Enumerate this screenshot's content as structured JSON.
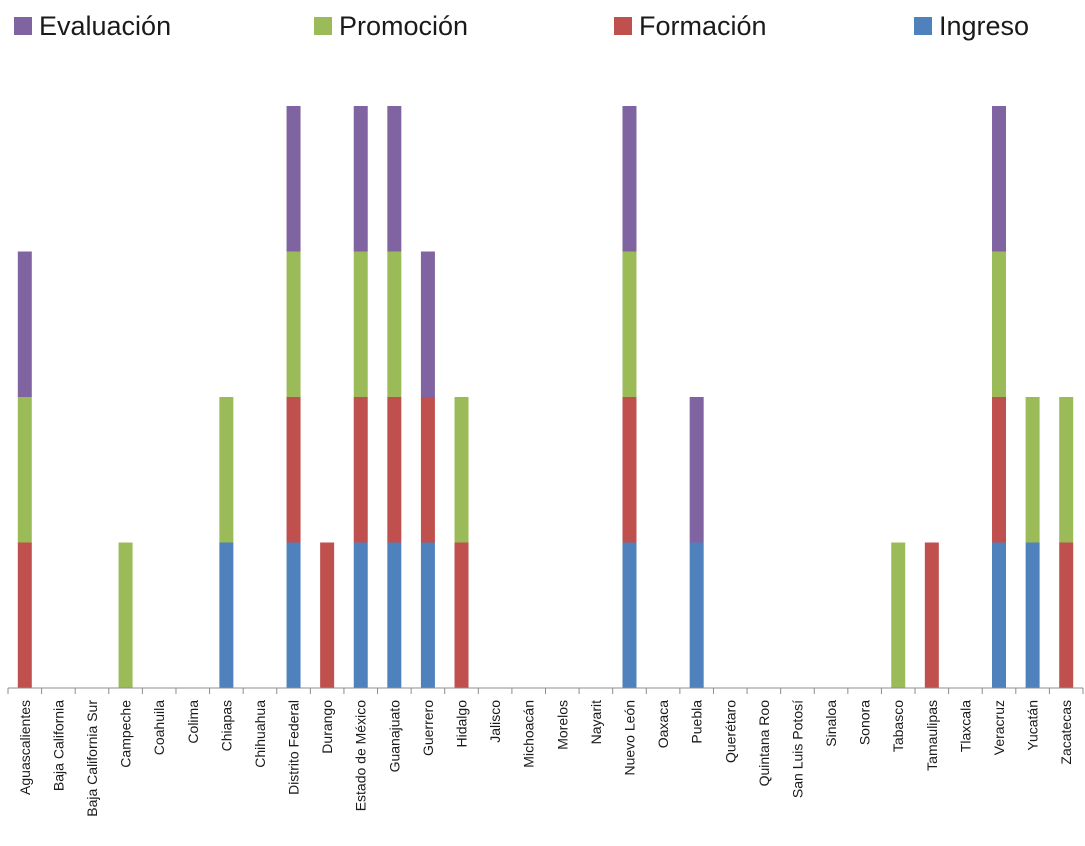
{
  "chart_data": {
    "type": "bar",
    "stacked": true,
    "legend_position": "top",
    "grid": false,
    "ylim": [
      0,
      4
    ],
    "categories": [
      "Aguascalientes",
      "Baja California",
      "Baja California Sur",
      "Campeche",
      "Coahuila",
      "Colima",
      "Chiapas",
      "Chihuahua",
      "Distrito Federal",
      "Durango",
      "Estado de México",
      "Guanajuato",
      "Guerrero",
      "Hidalgo",
      "Jalisco",
      "Michoacán",
      "Morelos",
      "Nayarit",
      "Nuevo León",
      "Oaxaca",
      "Puebla",
      "Querétaro",
      "Quintana Roo",
      "San Luis Potosí",
      "Sinaloa",
      "Sonora",
      "Tabasco",
      "Tamaulipas",
      "Tlaxcala",
      "Veracruz",
      "Yucatán",
      "Zacatecas"
    ],
    "series": [
      {
        "name": "Ingreso",
        "color": "#4f81bd",
        "values": [
          0,
          0,
          0,
          0,
          0,
          0,
          1,
          0,
          1,
          0,
          1,
          1,
          1,
          0,
          0,
          0,
          0,
          0,
          1,
          0,
          1,
          0,
          0,
          0,
          0,
          0,
          0,
          0,
          0,
          1,
          1,
          0
        ]
      },
      {
        "name": "Formación",
        "color": "#c0504d",
        "values": [
          1,
          0,
          0,
          0,
          0,
          0,
          0,
          0,
          1,
          1,
          1,
          1,
          1,
          1,
          0,
          0,
          0,
          0,
          1,
          0,
          0,
          0,
          0,
          0,
          0,
          0,
          0,
          1,
          0,
          1,
          0,
          1
        ]
      },
      {
        "name": "Promoción",
        "color": "#9bbb59",
        "values": [
          1,
          0,
          0,
          1,
          0,
          0,
          1,
          0,
          1,
          0,
          1,
          1,
          0,
          1,
          0,
          0,
          0,
          0,
          1,
          0,
          0,
          0,
          0,
          0,
          0,
          0,
          1,
          0,
          0,
          1,
          1,
          1
        ]
      },
      {
        "name": "Evaluación",
        "color": "#8064a2",
        "values": [
          1,
          0,
          0,
          0,
          0,
          0,
          0,
          0,
          1,
          0,
          1,
          1,
          1,
          0,
          0,
          0,
          0,
          0,
          1,
          0,
          1,
          0,
          0,
          0,
          0,
          0,
          0,
          0,
          0,
          1,
          0,
          0
        ]
      }
    ],
    "legend_order": [
      "Evaluación",
      "Promoción",
      "Formación",
      "Ingreso"
    ]
  }
}
